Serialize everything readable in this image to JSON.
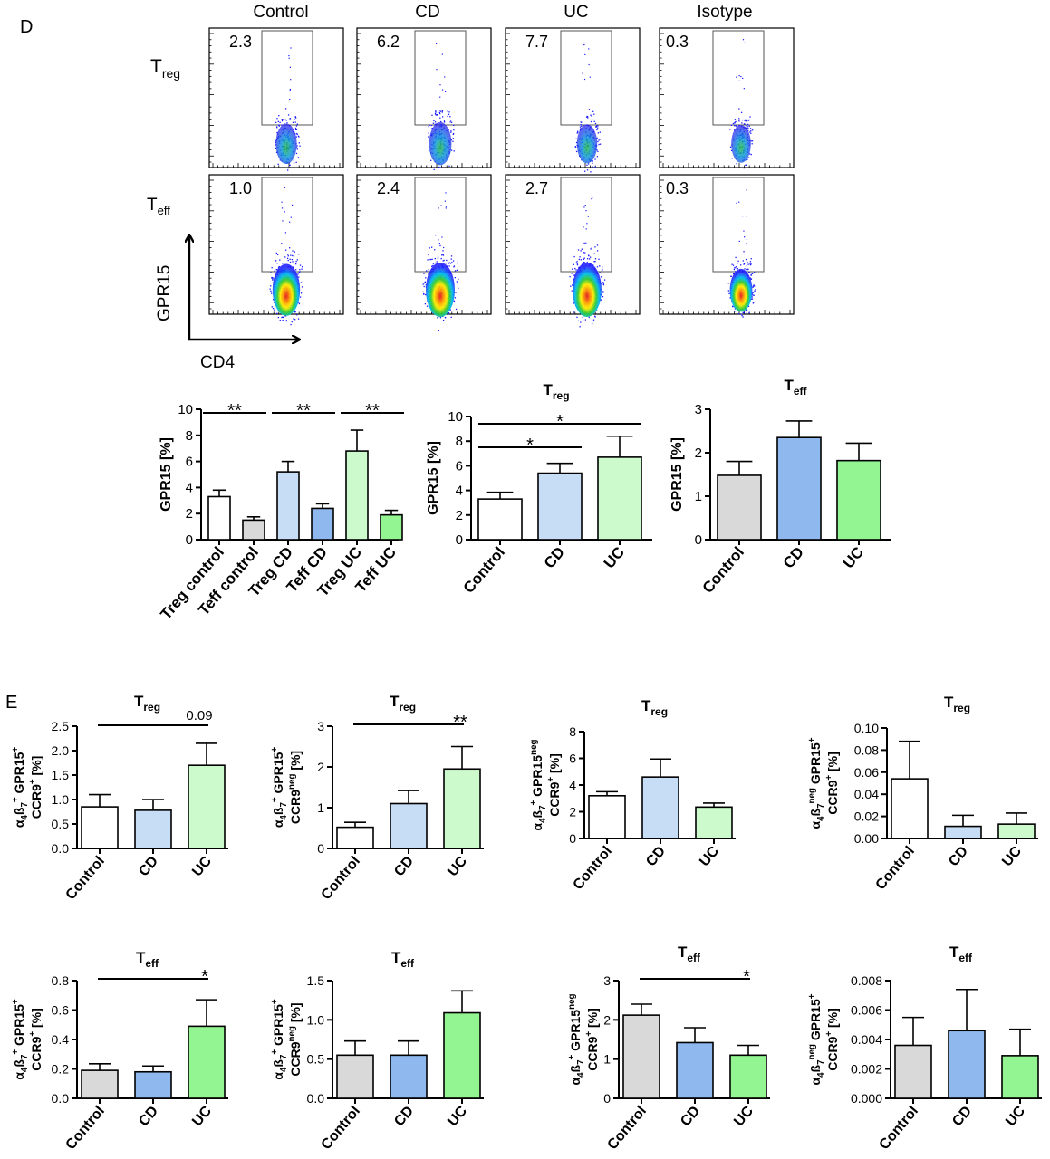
{
  "panel_d": {
    "label": "D",
    "flow": {
      "columns": [
        "Control",
        "CD",
        "UC",
        "Isotype"
      ],
      "rows": [
        {
          "label_main": "T",
          "label_sub": "reg",
          "values": [
            "2.3",
            "6.2",
            "7.7",
            "0.3"
          ]
        },
        {
          "label_main": "T",
          "label_sub": "eff",
          "values": [
            "1.0",
            "2.4",
            "2.7",
            "0.3"
          ]
        }
      ],
      "y_axis_label": "GPR15",
      "x_axis_label": "CD4"
    }
  },
  "panel_e": {
    "label": "E"
  },
  "colors": {
    "white": "#ffffff",
    "grey": "#d9d9d9",
    "light_blue": "#c7dcf5",
    "blue": "#8fb8ee",
    "light_green": "#cdfacd",
    "green": "#92f592"
  },
  "chart_data": [
    {
      "id": "d1",
      "type": "bar",
      "categories": [
        "Treg control",
        "Teff control",
        "Treg CD",
        "Teff CD",
        "Treg UC",
        "Teff UC"
      ],
      "values": [
        3.3,
        1.5,
        5.2,
        2.4,
        6.8,
        1.9
      ],
      "errors": [
        0.5,
        0.25,
        0.8,
        0.35,
        1.6,
        0.35
      ],
      "colors": [
        "white",
        "grey",
        "light_blue",
        "blue",
        "light_green",
        "green"
      ],
      "title": "",
      "title_sub": "",
      "ylabel": "GPR15 [%]",
      "ylim": [
        0,
        10
      ],
      "yticks": [
        "0",
        "2",
        "4",
        "6",
        "8",
        "10"
      ],
      "annotations": [
        {
          "from": 0,
          "to": 1,
          "text": "**"
        },
        {
          "from": 2,
          "to": 3,
          "text": "**"
        },
        {
          "from": 4,
          "to": 5,
          "text": "**"
        }
      ]
    },
    {
      "id": "d2",
      "type": "bar",
      "categories": [
        "Control",
        "CD",
        "UC"
      ],
      "values": [
        3.3,
        5.4,
        6.7
      ],
      "errors": [
        0.55,
        0.8,
        1.7
      ],
      "colors": [
        "white",
        "light_blue",
        "light_green"
      ],
      "title": "T",
      "title_sub": "reg",
      "ylabel": "GPR15 [%]",
      "ylim": [
        0,
        10
      ],
      "yticks": [
        "0",
        "2",
        "4",
        "6",
        "8",
        "10"
      ],
      "annotations": [
        {
          "from": 0,
          "to": 1,
          "text": "*"
        },
        {
          "from": 0,
          "to": 2,
          "text": "*"
        }
      ]
    },
    {
      "id": "d3",
      "type": "bar",
      "categories": [
        "Control",
        "CD",
        "UC"
      ],
      "values": [
        1.48,
        2.35,
        1.82
      ],
      "errors": [
        0.32,
        0.38,
        0.4
      ],
      "colors": [
        "grey",
        "blue",
        "green"
      ],
      "title": "T",
      "title_sub": "eff",
      "ylabel": "GPR15 [%]",
      "ylim": [
        0,
        3
      ],
      "yticks": [
        "0",
        "1",
        "2",
        "3"
      ],
      "annotations": []
    },
    {
      "id": "e1",
      "type": "bar",
      "categories": [
        "Control",
        "CD",
        "UC"
      ],
      "values": [
        0.85,
        0.78,
        1.7
      ],
      "errors": [
        0.25,
        0.22,
        0.45
      ],
      "colors": [
        "white",
        "light_blue",
        "light_green"
      ],
      "title": "T",
      "title_sub": "reg",
      "ylabel_parts": [
        {
          "t": "α"
        },
        {
          "t": "4",
          "s": "sub"
        },
        {
          "t": "ß"
        },
        {
          "t": "7",
          "s": "sub"
        },
        {
          "t": "+",
          "s": "sup"
        },
        {
          "t": " GPR15"
        },
        {
          "t": "+",
          "s": "sup"
        }
      ],
      "ylabel2_parts": [
        {
          "t": "CCR9"
        },
        {
          "t": "+",
          "s": "sup"
        },
        {
          "t": " [%]"
        }
      ],
      "ylim": [
        0,
        2.5
      ],
      "yticks": [
        "0.0",
        "0.5",
        "1.0",
        "1.5",
        "2.0",
        "2.5"
      ],
      "annotations": [
        {
          "from": 0,
          "to": 2,
          "text": "0.09",
          "side": "right"
        }
      ]
    },
    {
      "id": "e2",
      "type": "bar",
      "categories": [
        "Control",
        "CD",
        "UC"
      ],
      "values": [
        0.52,
        1.1,
        1.95
      ],
      "errors": [
        0.12,
        0.32,
        0.55
      ],
      "colors": [
        "white",
        "light_blue",
        "light_green"
      ],
      "title": "T",
      "title_sub": "reg",
      "ylabel_parts": [
        {
          "t": "α"
        },
        {
          "t": "4",
          "s": "sub"
        },
        {
          "t": "ß"
        },
        {
          "t": "7",
          "s": "sub"
        },
        {
          "t": "+",
          "s": "sup"
        },
        {
          "t": " GPR15"
        },
        {
          "t": "+",
          "s": "sup"
        }
      ],
      "ylabel2_parts": [
        {
          "t": "CCR9"
        },
        {
          "t": "neg",
          "s": "sup"
        },
        {
          "t": " [%]"
        }
      ],
      "ylim": [
        0,
        3
      ],
      "yticks": [
        "0",
        "1",
        "2",
        "3"
      ],
      "annotations": [
        {
          "from": 0,
          "to": 2,
          "text": "**",
          "side": "right"
        }
      ]
    },
    {
      "id": "e3",
      "type": "bar",
      "categories": [
        "Control",
        "CD",
        "UC"
      ],
      "values": [
        3.2,
        4.6,
        2.35
      ],
      "errors": [
        0.3,
        1.35,
        0.3
      ],
      "colors": [
        "white",
        "light_blue",
        "light_green"
      ],
      "title": "T",
      "title_sub": "reg",
      "ylabel_parts": [
        {
          "t": "α"
        },
        {
          "t": "4",
          "s": "sub"
        },
        {
          "t": "ß"
        },
        {
          "t": "7",
          "s": "sub"
        },
        {
          "t": "+",
          "s": "sup"
        },
        {
          "t": " GPR15"
        },
        {
          "t": "neg",
          "s": "sup"
        }
      ],
      "ylabel2_parts": [
        {
          "t": "CCR9"
        },
        {
          "t": "+",
          "s": "sup"
        },
        {
          "t": " [%]"
        }
      ],
      "ylim": [
        0,
        8
      ],
      "yticks": [
        "0",
        "2",
        "4",
        "6",
        "8"
      ],
      "annotations": []
    },
    {
      "id": "e4",
      "type": "bar",
      "categories": [
        "Control",
        "CD",
        "UC"
      ],
      "values": [
        0.054,
        0.011,
        0.013
      ],
      "errors": [
        0.034,
        0.01,
        0.01
      ],
      "colors": [
        "white",
        "light_blue",
        "light_green"
      ],
      "title": "T",
      "title_sub": "reg",
      "ylabel_parts": [
        {
          "t": "α"
        },
        {
          "t": "4",
          "s": "sub"
        },
        {
          "t": "ß"
        },
        {
          "t": "7",
          "s": "sub"
        },
        {
          "t": "neg",
          "s": "sup"
        },
        {
          "t": " GPR15"
        },
        {
          "t": "+",
          "s": "sup"
        }
      ],
      "ylabel2_parts": [
        {
          "t": "CCR9"
        },
        {
          "t": "+",
          "s": "sup"
        },
        {
          "t": " [%]"
        }
      ],
      "ylim": [
        0,
        0.1
      ],
      "yticks": [
        "0.00",
        "0.02",
        "0.04",
        "0.06",
        "0.08",
        "0.10"
      ],
      "annotations": []
    },
    {
      "id": "e5",
      "type": "bar",
      "categories": [
        "Control",
        "CD",
        "UC"
      ],
      "values": [
        0.19,
        0.18,
        0.49
      ],
      "errors": [
        0.045,
        0.04,
        0.18
      ],
      "colors": [
        "grey",
        "blue",
        "green"
      ],
      "title": "T",
      "title_sub": "eff",
      "ylabel_parts": [
        {
          "t": "α"
        },
        {
          "t": "4",
          "s": "sub"
        },
        {
          "t": "ß"
        },
        {
          "t": "7",
          "s": "sub"
        },
        {
          "t": "+",
          "s": "sup"
        },
        {
          "t": " GPR15"
        },
        {
          "t": "+",
          "s": "sup"
        }
      ],
      "ylabel2_parts": [
        {
          "t": "CCR9"
        },
        {
          "t": "+",
          "s": "sup"
        },
        {
          "t": " [%]"
        }
      ],
      "ylim": [
        0,
        0.8
      ],
      "yticks": [
        "0.0",
        "0.2",
        "0.4",
        "0.6",
        "0.8"
      ],
      "annotations": [
        {
          "from": 0,
          "to": 2,
          "text": "*",
          "side": "right"
        }
      ]
    },
    {
      "id": "e6",
      "type": "bar",
      "categories": [
        "Control",
        "CD",
        "UC"
      ],
      "values": [
        0.55,
        0.55,
        1.09
      ],
      "errors": [
        0.18,
        0.18,
        0.28
      ],
      "colors": [
        "grey",
        "blue",
        "green"
      ],
      "title": "T",
      "title_sub": "eff",
      "ylabel_parts": [
        {
          "t": "α"
        },
        {
          "t": "4",
          "s": "sub"
        },
        {
          "t": "ß"
        },
        {
          "t": "7",
          "s": "sub"
        },
        {
          "t": "+",
          "s": "sup"
        },
        {
          "t": " GPR15"
        },
        {
          "t": "+",
          "s": "sup"
        }
      ],
      "ylabel2_parts": [
        {
          "t": "CCR9"
        },
        {
          "t": "neg",
          "s": "sup"
        },
        {
          "t": " [%]"
        }
      ],
      "ylim": [
        0,
        1.5
      ],
      "yticks": [
        "0.0",
        "0.5",
        "1.0",
        "1.5"
      ],
      "annotations": []
    },
    {
      "id": "e7",
      "type": "bar",
      "categories": [
        "Control",
        "CD",
        "UC"
      ],
      "values": [
        2.12,
        1.42,
        1.1
      ],
      "errors": [
        0.28,
        0.38,
        0.25
      ],
      "colors": [
        "grey",
        "blue",
        "green"
      ],
      "title": "T",
      "title_sub": "eff",
      "ylabel_parts": [
        {
          "t": "α"
        },
        {
          "t": "4",
          "s": "sub"
        },
        {
          "t": "ß"
        },
        {
          "t": "7",
          "s": "sub"
        },
        {
          "t": "+",
          "s": "sup"
        },
        {
          "t": " GPR15"
        },
        {
          "t": "neg",
          "s": "sup"
        }
      ],
      "ylabel2_parts": [
        {
          "t": "CCR9"
        },
        {
          "t": "+",
          "s": "sup"
        },
        {
          "t": " [%]"
        }
      ],
      "ylim": [
        0,
        3
      ],
      "yticks": [
        "0",
        "1",
        "2",
        "3"
      ],
      "annotations": [
        {
          "from": 0,
          "to": 2,
          "text": "*",
          "side": "right"
        }
      ]
    },
    {
      "id": "e8",
      "type": "bar",
      "categories": [
        "Control",
        "CD",
        "UC"
      ],
      "values": [
        0.0036,
        0.0046,
        0.0029
      ],
      "errors": [
        0.0019,
        0.0028,
        0.0018
      ],
      "colors": [
        "grey",
        "blue",
        "green"
      ],
      "title": "T",
      "title_sub": "eff",
      "ylabel_parts": [
        {
          "t": "α"
        },
        {
          "t": "4",
          "s": "sub"
        },
        {
          "t": "ß"
        },
        {
          "t": "7",
          "s": "sub"
        },
        {
          "t": "neg",
          "s": "sup"
        },
        {
          "t": " GPR15"
        },
        {
          "t": "+",
          "s": "sup"
        }
      ],
      "ylabel2_parts": [
        {
          "t": "CCR9"
        },
        {
          "t": "+",
          "s": "sup"
        },
        {
          "t": " [%]"
        }
      ],
      "ylim": [
        0,
        0.008
      ],
      "yticks": [
        "0.000",
        "0.002",
        "0.004",
        "0.006",
        "0.008"
      ],
      "annotations": []
    }
  ]
}
